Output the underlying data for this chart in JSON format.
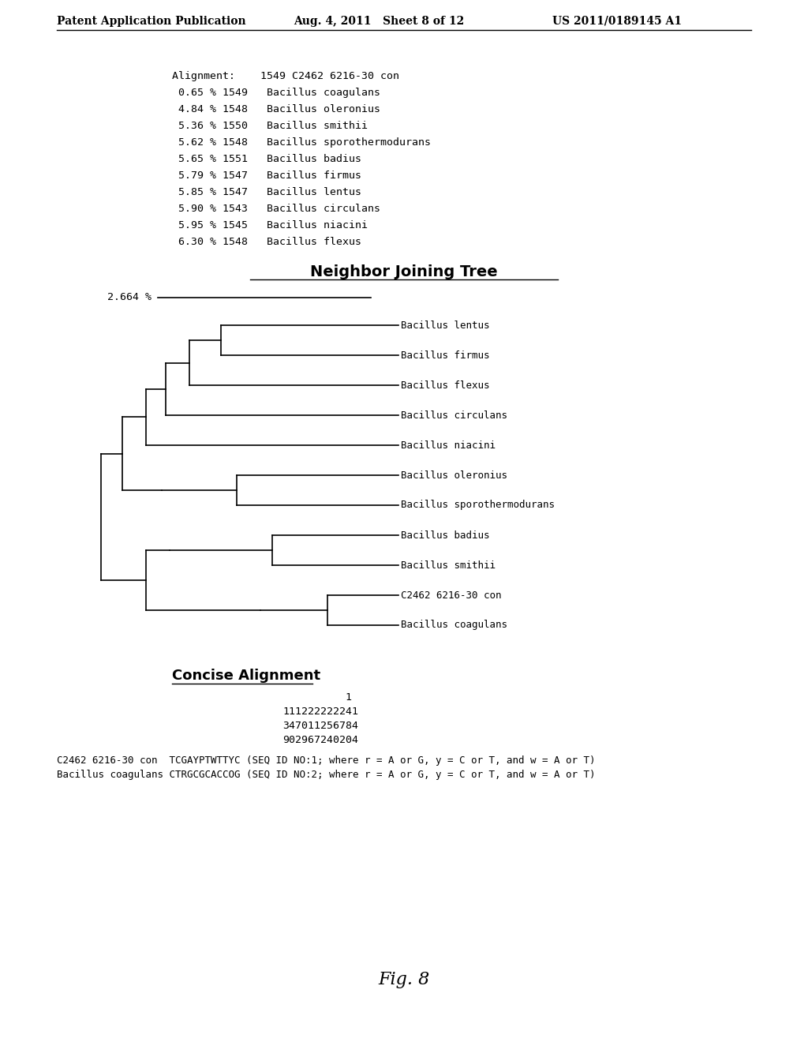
{
  "bg_color": "#ffffff",
  "header_left": "Patent Application Publication",
  "header_mid": "Aug. 4, 2011   Sheet 8 of 12",
  "header_right": "US 2011/0189145 A1",
  "alignment_header": "Alignment:    1549 C2462 6216-30 con",
  "alignment_rows": [
    " 0.65 % 1549   Bacillus coagulans",
    " 4.84 % 1548   Bacillus oleronius",
    " 5.36 % 1550   Bacillus smithii",
    " 5.62 % 1548   Bacillus sporothermodurans",
    " 5.65 % 1551   Bacillus badius",
    " 5.79 % 1547   Bacillus firmus",
    " 5.85 % 1547   Bacillus lentus",
    " 5.90 % 1543   Bacillus circulans",
    " 5.95 % 1545   Bacillus niacini",
    " 6.30 % 1548   Bacillus flexus"
  ],
  "nj_title": "Neighbor Joining Tree",
  "scale_label": "2.664 %",
  "tree_taxa": [
    "Bacillus lentus",
    "Bacillus firmus",
    "Bacillus flexus",
    "Bacillus circulans",
    "Bacillus niacini",
    "Bacillus oleronius",
    "Bacillus sporothermodurans",
    "Bacillus badius",
    "Bacillus smithii",
    "C2462 6216-30 con",
    "Bacillus coagulans"
  ],
  "concise_title": "Concise Alignment",
  "concise_line1": "          1",
  "concise_line2": "111222222241",
  "concise_line3": "347011256784",
  "concise_line4": "902967240204",
  "concise_seq1": "C2462 6216-30 con  TCGAYPTWTTYC (SEQ ID NO:1; where r = A or G, y = C or T, and w = A or T)",
  "concise_seq2": "Bacillus coagulans CTRGCGCACCOG (SEQ ID NO:2; where r = A or G, y = C or T, and w = A or T)",
  "fig_label": "Fig. 8"
}
